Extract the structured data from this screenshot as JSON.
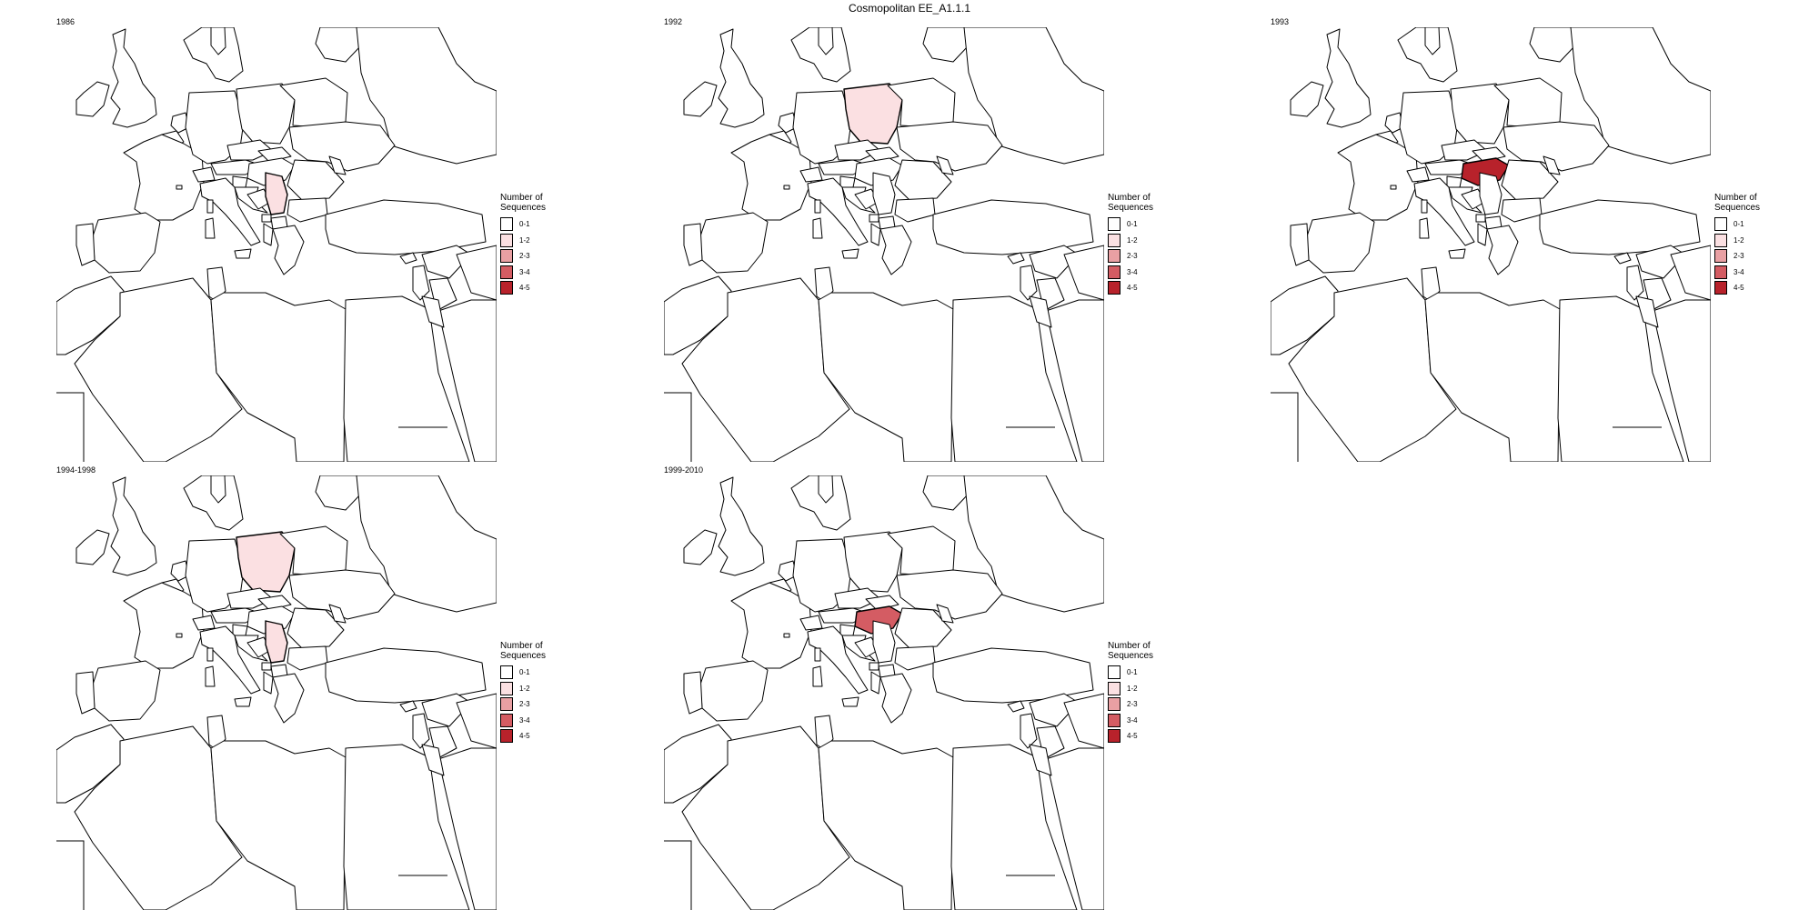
{
  "title": "Cosmopolitan EE_A1.1.1",
  "legend": {
    "title_line1": "Number of",
    "title_line2": "Sequences",
    "items": [
      {
        "label": "0-1",
        "color": "#ffffff"
      },
      {
        "label": "1-2",
        "color": "#fbe0e2"
      },
      {
        "label": "2-3",
        "color": "#e9a0a3"
      },
      {
        "label": "3-4",
        "color": "#d45c63"
      },
      {
        "label": "4-5",
        "color": "#b8222b"
      }
    ]
  },
  "panels": [
    {
      "label": "1986",
      "highlighted": [
        {
          "country": "Serbia",
          "bin": "1-2"
        }
      ]
    },
    {
      "label": "1992",
      "highlighted": [
        {
          "country": "Poland",
          "bin": "1-2"
        }
      ]
    },
    {
      "label": "1993",
      "highlighted": [
        {
          "country": "Hungary",
          "bin": "4-5"
        }
      ]
    },
    {
      "label": "1994-1998",
      "highlighted": [
        {
          "country": "Poland",
          "bin": "1-2"
        },
        {
          "country": "Serbia",
          "bin": "1-2"
        }
      ]
    },
    {
      "label": "1999-2010",
      "highlighted": [
        {
          "country": "Hungary",
          "bin": "3-4"
        }
      ]
    }
  ]
}
